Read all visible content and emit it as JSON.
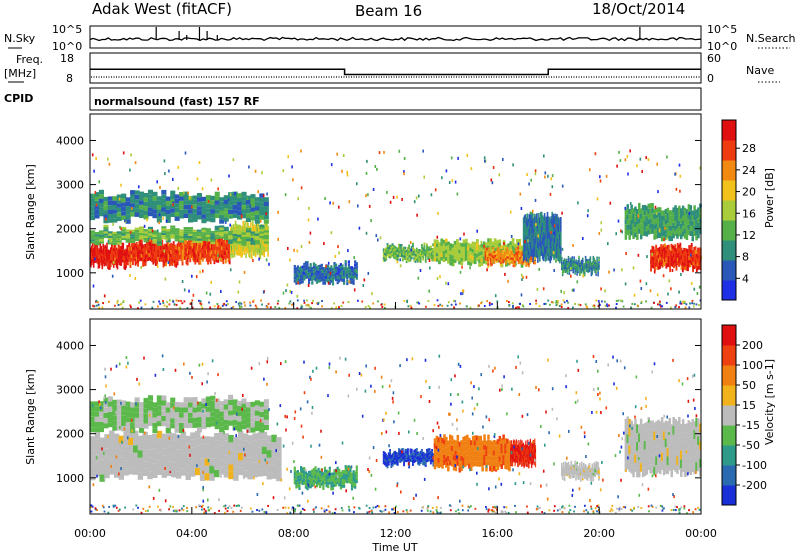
{
  "header": {
    "station": "Adak West (fitACF)",
    "beam": "Beam 16",
    "date": "18/Oct/2014"
  },
  "sky_panel": {
    "left_label": "N.Sky",
    "right_label": "N.Search",
    "left_ticks": [
      "10^5",
      "10^0"
    ],
    "right_ticks": [
      "10^5",
      "10^0"
    ],
    "spikes_hours": [
      2.6,
      3.5,
      3.8,
      4.3,
      4.6,
      5.0,
      21.6
    ]
  },
  "freq_panel": {
    "left_label_1": "Freq.",
    "left_label_2": "[MHz]",
    "right_label": "Nave",
    "left_ticks": [
      "18",
      "8"
    ],
    "right_ticks": [
      "60",
      "0"
    ],
    "freq_steps_mhz": [
      [
        0,
        10.0,
        12.5
      ],
      [
        10.0,
        18.0,
        10.5
      ],
      [
        18.0,
        24.0,
        12.5
      ]
    ],
    "freq_range_mhz": [
      8,
      18
    ]
  },
  "cpid_panel": {
    "label": "CPID",
    "text": "normalsound (fast) 157 RF"
  },
  "x_axis": {
    "label": "Time UT",
    "ticks": [
      "00:00",
      "04:00",
      "08:00",
      "12:00",
      "16:00",
      "20:00",
      "00:00"
    ],
    "range_hours": [
      0,
      24
    ]
  },
  "chart_data": [
    {
      "type": "heatmap",
      "name": "power",
      "ylabel": "Slant Range [km]",
      "ylim": [
        180,
        4600
      ],
      "yticks": [
        1000,
        2000,
        3000,
        4000
      ],
      "colorbar": {
        "label": "Power [dB]",
        "ticks": [
          "4",
          "8",
          "12",
          "16",
          "20",
          "24",
          "28"
        ],
        "colors": [
          "#1f2fe6",
          "#2a58b8",
          "#2f8f7a",
          "#56b04a",
          "#a8cc3a",
          "#f2c21c",
          "#f28a12",
          "#ee3b10",
          "#e01010"
        ],
        "range": [
          0,
          30
        ]
      },
      "regions": [
        {
          "t": [
            0.0,
            1.5
          ],
          "r": [
            1150,
            1600
          ],
          "level": 28
        },
        {
          "t": [
            1.5,
            3.5
          ],
          "r": [
            1200,
            1700
          ],
          "level": 26
        },
        {
          "t": [
            3.5,
            5.5
          ],
          "r": [
            1250,
            1800
          ],
          "level": 25
        },
        {
          "t": [
            5.5,
            7.0
          ],
          "r": [
            1400,
            2100
          ],
          "level": 16
        },
        {
          "t": [
            0.0,
            7.0
          ],
          "r": [
            1700,
            2000
          ],
          "level": 12
        },
        {
          "t": [
            0.0,
            7.0
          ],
          "r": [
            2200,
            2800
          ],
          "level": 8
        },
        {
          "t": [
            8.0,
            10.5
          ],
          "r": [
            800,
            1200
          ],
          "level": 6
        },
        {
          "t": [
            11.5,
            13.5
          ],
          "r": [
            1300,
            1600
          ],
          "level": 12
        },
        {
          "t": [
            13.5,
            17.0
          ],
          "r": [
            1200,
            1700
          ],
          "level": 14
        },
        {
          "t": [
            15.5,
            17.5
          ],
          "r": [
            1200,
            1500
          ],
          "level": 22
        },
        {
          "t": [
            17.0,
            18.5
          ],
          "r": [
            1300,
            2300
          ],
          "level": 7
        },
        {
          "t": [
            18.5,
            20.0
          ],
          "r": [
            1000,
            1300
          ],
          "level": 8
        },
        {
          "t": [
            21.0,
            24.0
          ],
          "r": [
            1800,
            2500
          ],
          "level": 10
        },
        {
          "t": [
            22.0,
            24.0
          ],
          "r": [
            1100,
            1600
          ],
          "level": 26
        }
      ]
    },
    {
      "type": "heatmap",
      "name": "velocity",
      "ylabel": "Slant Range [km]",
      "ylim": [
        180,
        4600
      ],
      "yticks": [
        1000,
        2000,
        3000,
        4000
      ],
      "colorbar": {
        "label": "Velocity [m s-1]",
        "ticks": [
          "200",
          "100",
          "50",
          "15",
          "-15",
          "-50",
          "-100",
          "-200"
        ],
        "colors": [
          "#1b2fd6",
          "#2a6ab0",
          "#2e9a8a",
          "#5bb84a",
          "#bcbcbc",
          "#f2b21c",
          "#f08012",
          "#ee4010",
          "#e01010"
        ],
        "range": [
          -250,
          250
        ]
      },
      "regions": [
        {
          "t": [
            0.0,
            7.5
          ],
          "r": [
            1000,
            2000
          ],
          "level": 0
        },
        {
          "t": [
            0.0,
            7.0
          ],
          "r": [
            2100,
            2800
          ],
          "level": -30
        },
        {
          "t": [
            8.0,
            10.5
          ],
          "r": [
            800,
            1200
          ],
          "level": -80
        },
        {
          "t": [
            11.5,
            13.5
          ],
          "r": [
            1300,
            1600
          ],
          "level": -200
        },
        {
          "t": [
            13.5,
            16.5
          ],
          "r": [
            1200,
            1900
          ],
          "level": 120
        },
        {
          "t": [
            16.5,
            17.5
          ],
          "r": [
            1300,
            1800
          ],
          "level": 200
        },
        {
          "t": [
            18.5,
            20.0
          ],
          "r": [
            1000,
            1300
          ],
          "level": 0
        },
        {
          "t": [
            21.0,
            24.0
          ],
          "r": [
            1100,
            2300
          ],
          "level": 0
        }
      ]
    }
  ]
}
